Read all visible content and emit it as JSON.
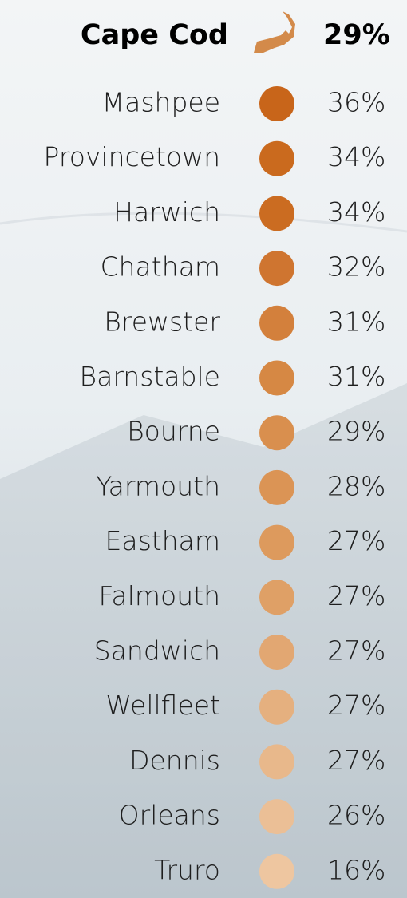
{
  "header": {
    "title": "Cape Cod",
    "value": "29%",
    "color": "#d38a4a"
  },
  "rows": [
    {
      "name": "Mashpee",
      "value": "36%",
      "color": "#c8651a"
    },
    {
      "name": "Provincetown",
      "value": "34%",
      "color": "#ca6a1e"
    },
    {
      "name": "Harwich",
      "value": "34%",
      "color": "#cb6c21"
    },
    {
      "name": "Chatham",
      "value": "32%",
      "color": "#cf7530"
    },
    {
      "name": "Brewster",
      "value": "31%",
      "color": "#d3803c"
    },
    {
      "name": "Barnstable",
      "value": "31%",
      "color": "#d68844"
    },
    {
      "name": "Bourne",
      "value": "29%",
      "color": "#d98f4e"
    },
    {
      "name": "Yarmouth",
      "value": "28%",
      "color": "#db9455"
    },
    {
      "name": "Eastham",
      "value": "27%",
      "color": "#dd9a5d"
    },
    {
      "name": "Falmouth",
      "value": "27%",
      "color": "#dfa066"
    },
    {
      "name": "Sandwich",
      "value": "27%",
      "color": "#e2a772"
    },
    {
      "name": "Wellfleet",
      "value": "27%",
      "color": "#e5b07f"
    },
    {
      "name": "Dennis",
      "value": "27%",
      "color": "#e8b88b"
    },
    {
      "name": "Orleans",
      "value": "26%",
      "color": "#ebbf96"
    },
    {
      "name": "Truro",
      "value": "16%",
      "color": "#eec6a0"
    }
  ]
}
